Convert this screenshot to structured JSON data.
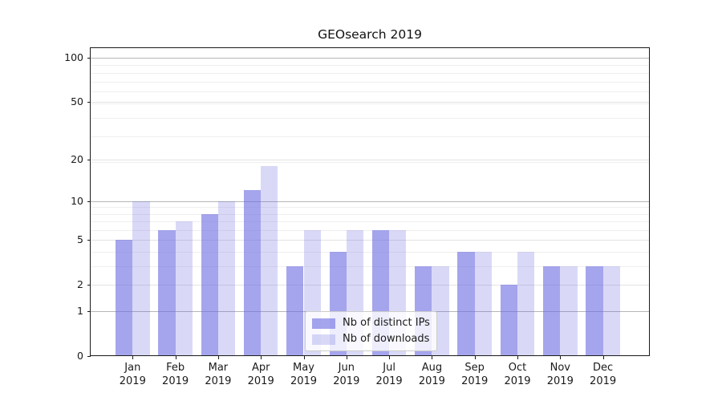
{
  "title": "GEOsearch 2019",
  "chart_data": {
    "type": "bar",
    "categories": [
      "Jan 2019",
      "Feb 2019",
      "Mar 2019",
      "Apr 2019",
      "May 2019",
      "Jun 2019",
      "Jul 2019",
      "Aug 2019",
      "Sep 2019",
      "Oct 2019",
      "Nov 2019",
      "Dec 2019"
    ],
    "series": [
      {
        "name": "Nb of distinct IPs",
        "values": [
          5,
          6,
          8,
          12,
          3,
          4,
          6,
          3,
          4,
          2,
          3,
          3
        ],
        "color": "rgba(105,105,225,0.60)"
      },
      {
        "name": "Nb of downloads",
        "values": [
          10,
          7,
          10,
          18,
          6,
          6,
          6,
          3,
          4,
          4,
          3,
          3
        ],
        "color": "rgba(105,105,225,0.25)"
      }
    ],
    "yscale": "log1p",
    "yticks": [
      0,
      1,
      2,
      5,
      10,
      20,
      50,
      100
    ],
    "ylim": [
      0,
      118
    ],
    "xlabel": "",
    "ylabel": "",
    "grid": "horizontal",
    "legend_position": "lower-center-inside",
    "colors": {
      "major_gridline": "#b6b6b6",
      "tick_gridline": "#e3e3e3",
      "minor_gridline": "#efefef",
      "axis": "#1a1a1a"
    }
  }
}
